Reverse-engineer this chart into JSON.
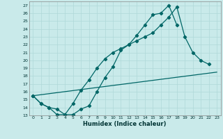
{
  "xlabel": "Humidex (Indice chaleur)",
  "background_color": "#c9eaea",
  "line_color": "#006666",
  "grid_color": "#afd8d8",
  "xlim": [
    -0.5,
    23.5
  ],
  "ylim": [
    13,
    27.5
  ],
  "yticks": [
    13,
    14,
    15,
    16,
    17,
    18,
    19,
    20,
    21,
    22,
    23,
    24,
    25,
    26,
    27
  ],
  "xticks": [
    0,
    1,
    2,
    3,
    4,
    5,
    6,
    7,
    8,
    9,
    10,
    11,
    12,
    13,
    14,
    15,
    16,
    17,
    18,
    19,
    20,
    21,
    22,
    23
  ],
  "curve1_x": [
    0,
    1,
    2,
    3,
    4,
    5,
    6,
    7,
    8,
    9,
    10,
    11,
    12,
    13,
    14,
    15,
    16,
    17,
    18
  ],
  "curve1_y": [
    15.5,
    14.5,
    14.0,
    13.8,
    13.1,
    13.1,
    13.8,
    14.2,
    16.0,
    17.8,
    19.2,
    21.3,
    22.0,
    23.2,
    24.5,
    25.8,
    26.0,
    27.0,
    24.5
  ],
  "curve2_x": [
    0,
    1,
    2,
    3,
    4,
    5,
    6,
    7,
    8,
    9,
    10,
    11,
    12,
    13,
    14,
    15,
    16,
    17,
    18,
    19,
    20,
    21,
    22
  ],
  "curve2_y": [
    15.5,
    14.5,
    14.0,
    13.1,
    13.1,
    14.5,
    16.2,
    17.5,
    19.0,
    20.2,
    21.0,
    21.5,
    22.0,
    22.5,
    23.0,
    23.5,
    24.5,
    25.5,
    26.8,
    23.0,
    21.0,
    20.0,
    19.5
  ],
  "curve3_x": [
    0,
    23
  ],
  "curve3_y": [
    15.5,
    18.5
  ]
}
